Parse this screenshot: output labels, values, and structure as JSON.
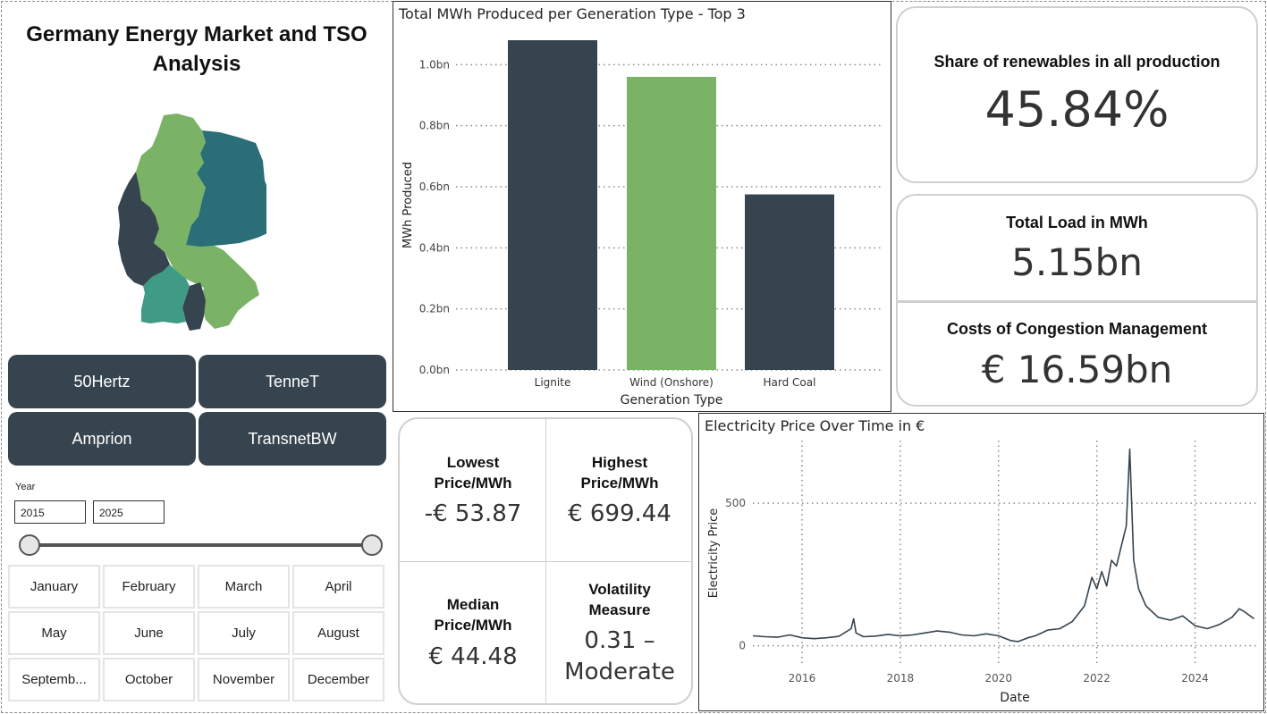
{
  "page": {
    "title": "Germany Energy Market and TSO Analysis"
  },
  "colors": {
    "dark": "#36444f",
    "green": "#7ab366",
    "teal": "#2a6e78",
    "seafoam": "#3f9b83"
  },
  "map": {
    "regions": [
      {
        "name": "TenneT",
        "color": "#7ab366"
      },
      {
        "name": "50Hertz",
        "color": "#2a6e78"
      },
      {
        "name": "Amprion",
        "color": "#36444f"
      },
      {
        "name": "TransnetBW",
        "color": "#3f9b83"
      }
    ]
  },
  "tso_buttons": [
    "50Hertz",
    "TenneT",
    "Amprion",
    "TransnetBW"
  ],
  "year_filter": {
    "label": "Year",
    "from": "2015",
    "to": "2025"
  },
  "months": [
    "January",
    "February",
    "March",
    "April",
    "May",
    "June",
    "July",
    "August",
    "Septemb...",
    "October",
    "November",
    "December"
  ],
  "bar_chart": {
    "title": "Total MWh Produced per Generation Type - Top 3",
    "chart_data": {
      "type": "bar",
      "categories": [
        "Lignite",
        "Wind (Onshore)",
        "Hard Coal"
      ],
      "values": [
        1.08,
        0.96,
        0.575
      ],
      "colors": [
        "#36444f",
        "#7ab366",
        "#36444f"
      ],
      "yticks": [
        "0.0bn",
        "0.2bn",
        "0.4bn",
        "0.6bn",
        "0.8bn",
        "1.0bn"
      ],
      "ytick_values": [
        0,
        0.2,
        0.4,
        0.6,
        0.8,
        1.0
      ],
      "ylim": [
        0,
        1.08
      ],
      "xlabel": "Generation Type",
      "ylabel": "MWh Produced",
      "grid": "horizontal dotted"
    }
  },
  "kpis": {
    "renewables": {
      "label": "Share of renewables in all production",
      "value": "45.84%"
    },
    "load": {
      "label": "Total Load in MWh",
      "value": "5.15bn"
    },
    "congestion": {
      "label": "Costs of Congestion Management",
      "value": "€ 16.59bn"
    }
  },
  "price_stats": {
    "lowest": {
      "label": "Lowest Price/MWh",
      "value": "-€ 53.87"
    },
    "highest": {
      "label": "Highest Price/MWh",
      "value": "€ 699.44"
    },
    "median": {
      "label": "Median Price/MWh",
      "value": "€ 44.48"
    },
    "volatility": {
      "label": "Volatility Measure",
      "value_num": "0.31 –",
      "value_text": "Moderate"
    }
  },
  "line_chart": {
    "title": "Electricity Price Over Time in €",
    "chart_data": {
      "type": "line",
      "xlabel": "Date",
      "ylabel": "Electricity Price",
      "xticks": [
        "2016",
        "2018",
        "2020",
        "2022",
        "2024"
      ],
      "xtick_values": [
        2016,
        2018,
        2020,
        2022,
        2024
      ],
      "yticks": [
        "0",
        "500"
      ],
      "ytick_values": [
        0,
        500
      ],
      "xlim": [
        2015,
        2025.3
      ],
      "ylim": [
        -70,
        720
      ],
      "x": [
        2015.0,
        2015.25,
        2015.5,
        2015.75,
        2016.0,
        2016.25,
        2016.5,
        2016.75,
        2017.0,
        2017.05,
        2017.1,
        2017.25,
        2017.5,
        2017.75,
        2018.0,
        2018.25,
        2018.5,
        2018.75,
        2019.0,
        2019.25,
        2019.5,
        2019.75,
        2020.0,
        2020.25,
        2020.4,
        2020.6,
        2020.75,
        2021.0,
        2021.25,
        2021.5,
        2021.75,
        2021.9,
        2022.0,
        2022.1,
        2022.2,
        2022.3,
        2022.4,
        2022.5,
        2022.6,
        2022.67,
        2022.75,
        2022.85,
        2023.0,
        2023.25,
        2023.5,
        2023.75,
        2024.0,
        2024.25,
        2024.5,
        2024.75,
        2024.9,
        2025.0,
        2025.2
      ],
      "y": [
        35,
        32,
        30,
        38,
        28,
        25,
        28,
        33,
        60,
        95,
        45,
        32,
        34,
        40,
        35,
        38,
        45,
        52,
        48,
        38,
        35,
        42,
        35,
        18,
        15,
        28,
        35,
        55,
        60,
        85,
        140,
        240,
        200,
        260,
        210,
        300,
        280,
        350,
        420,
        690,
        300,
        200,
        140,
        100,
        90,
        105,
        70,
        60,
        75,
        100,
        130,
        120,
        95
      ]
    }
  }
}
